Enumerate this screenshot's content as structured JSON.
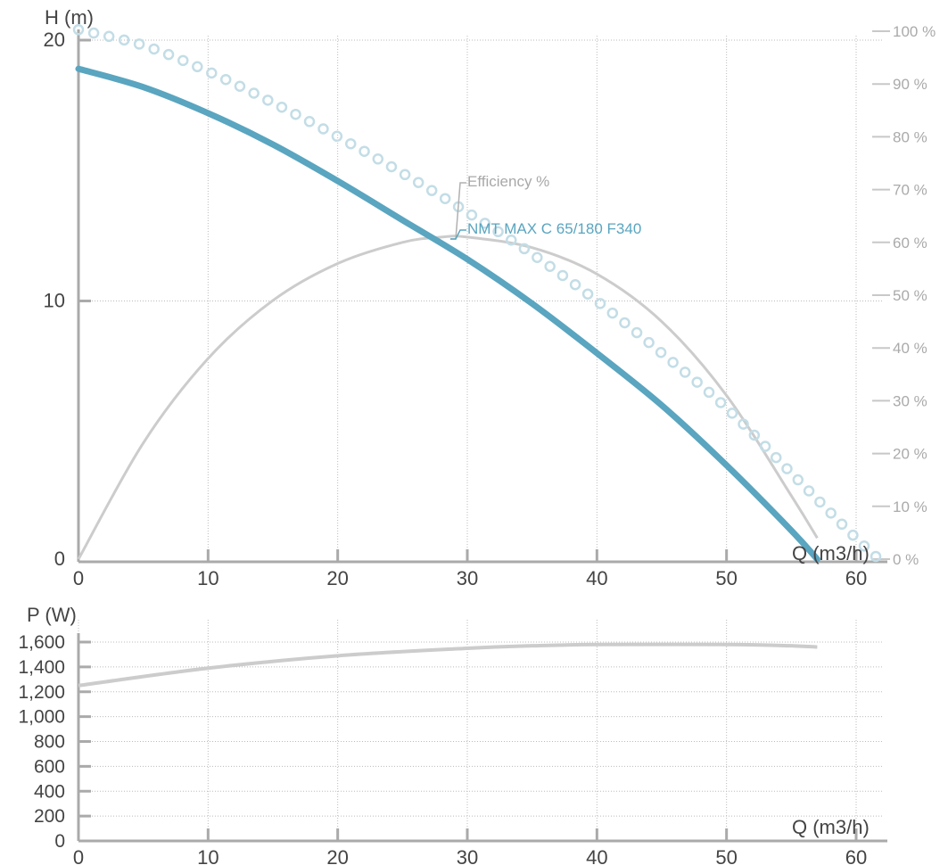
{
  "chart_data": [
    {
      "type": "line",
      "ylabel": "H (m)",
      "xlabel": "Q (m3/h)",
      "xlim": [
        0,
        60
      ],
      "ylim": [
        0,
        20
      ],
      "x_ticks": [
        "0",
        "10",
        "20",
        "30",
        "40",
        "50",
        "60"
      ],
      "y_ticks": [
        "0",
        "10",
        "20"
      ],
      "y2_ticks": [
        "0 %",
        "10 %",
        "20 %",
        "30 %",
        "40 %",
        "50 %",
        "60 %",
        "70 %",
        "80 %",
        "90 %",
        "100 %"
      ],
      "y2lim": [
        0,
        100
      ],
      "grid": true,
      "colors": {
        "head": "#5aa5c0",
        "head_dots": "#c3dde6",
        "efficiency": "#cccccc",
        "grid": "#bbbbbb",
        "axis": "#aaaaaa"
      },
      "series": [
        {
          "name": "NMT MAX C 65/180 F340",
          "axis": "H",
          "points": [
            [
              0,
              18.9
            ],
            [
              5,
              18.2
            ],
            [
              10,
              17.2
            ],
            [
              15,
              16.0
            ],
            [
              20,
              14.6
            ],
            [
              25,
              13.1
            ],
            [
              30,
              11.6
            ],
            [
              35,
              9.9
            ],
            [
              40,
              8.0
            ],
            [
              45,
              6.0
            ],
            [
              50,
              3.7
            ],
            [
              55,
              1.2
            ],
            [
              57,
              0.1
            ]
          ]
        },
        {
          "name": "",
          "axis": "H",
          "style": "dots",
          "points": [
            [
              0,
              20.4
            ],
            [
              5,
              19.8
            ],
            [
              10,
              18.8
            ],
            [
              15,
              17.6
            ],
            [
              20,
              16.3
            ],
            [
              25,
              14.9
            ],
            [
              30,
              13.4
            ],
            [
              35,
              11.8
            ],
            [
              40,
              10.0
            ],
            [
              45,
              8.0
            ],
            [
              50,
              5.9
            ],
            [
              55,
              3.4
            ],
            [
              60,
              0.9
            ],
            [
              62,
              0.0
            ]
          ]
        },
        {
          "name": "Efficiency %",
          "axis": "y2",
          "points": [
            [
              0,
              0
            ],
            [
              5,
              22
            ],
            [
              10,
              38
            ],
            [
              15,
              49
            ],
            [
              20,
              56
            ],
            [
              25,
              60
            ],
            [
              28,
              61
            ],
            [
              30,
              61
            ],
            [
              35,
              59
            ],
            [
              40,
              54
            ],
            [
              45,
              45
            ],
            [
              50,
              31
            ],
            [
              55,
              12
            ],
            [
              57,
              4
            ]
          ]
        }
      ]
    },
    {
      "type": "line",
      "ylabel": "P (W)",
      "xlabel": "Q (m3/h)",
      "xlim": [
        0,
        60
      ],
      "ylim": [
        0,
        1600
      ],
      "x_ticks": [
        "0",
        "10",
        "20",
        "30",
        "40",
        "50",
        "60"
      ],
      "y_ticks": [
        "0",
        "200",
        "400",
        "600",
        "800",
        "1,000",
        "1,200",
        "1,400",
        "1,600"
      ],
      "grid": true,
      "series": [
        {
          "name": "",
          "points": [
            [
              0,
              1250
            ],
            [
              10,
              1390
            ],
            [
              20,
              1490
            ],
            [
              30,
              1550
            ],
            [
              35,
              1570
            ],
            [
              40,
              1580
            ],
            [
              50,
              1580
            ],
            [
              55,
              1570
            ],
            [
              57,
              1560
            ]
          ]
        }
      ]
    }
  ]
}
